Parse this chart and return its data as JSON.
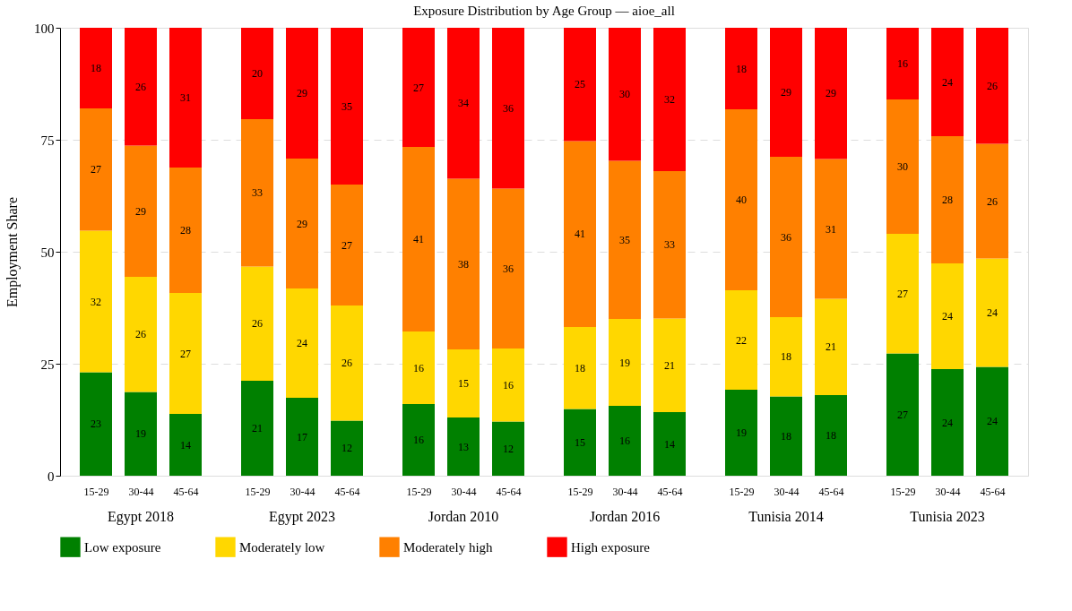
{
  "chart_data": {
    "type": "bar",
    "stacked": true,
    "title": "Exposure Distribution by Age Group — aioe_all",
    "ylabel": "Employment Share",
    "categories": [
      "15-29",
      "30-44",
      "45-64",
      "15-29",
      "30-44",
      "45-64",
      "15-29",
      "30-44",
      "45-64",
      "15-29",
      "30-44",
      "45-64",
      "15-29",
      "30-44",
      "45-64",
      "15-29",
      "30-44",
      "45-64"
    ],
    "annotations": [
      "Egypt 2018",
      "Egypt 2023",
      "Jordan 2010",
      "Jordan 2016",
      "Tunisia 2014",
      "Tunisia 2023"
    ],
    "ylim": [
      0,
      100
    ],
    "yticks": [
      0,
      25,
      50,
      75,
      100
    ],
    "grid": "y",
    "legend": "bottom",
    "series": [
      {
        "name": "Low exposure",
        "color": "#008000",
        "values": [
          23.1,
          18.7,
          13.8,
          21.2,
          17.4,
          12.3,
          16.0,
          13.0,
          12.1,
          14.9,
          15.6,
          14.2,
          19.2,
          17.7,
          18.0,
          27.3,
          23.8,
          24.3
        ],
        "value_labels": [
          "23",
          "19",
          "14",
          "21",
          "17",
          "12",
          "16",
          "13",
          "12",
          "15",
          "16",
          "14",
          "19",
          "18",
          "18",
          "27",
          "24",
          "24"
        ]
      },
      {
        "name": "Moderately low",
        "color": "#ffd700",
        "values": [
          31.6,
          25.7,
          27.0,
          25.5,
          24.4,
          25.7,
          16.2,
          15.2,
          16.3,
          18.3,
          19.4,
          20.9,
          22.2,
          17.7,
          21.5,
          26.7,
          23.6,
          24.2
        ],
        "value_labels": [
          "32",
          "26",
          "27",
          "26",
          "24",
          "26",
          "16",
          "15",
          "16",
          "18",
          "19",
          "21",
          "22",
          "18",
          "21",
          "27",
          "24",
          "24"
        ]
      },
      {
        "name": "Moderately high",
        "color": "#ff8000",
        "values": [
          27.3,
          29.3,
          28.0,
          32.9,
          29.0,
          27.0,
          41.2,
          38.1,
          35.7,
          41.5,
          35.3,
          32.9,
          40.4,
          35.8,
          31.2,
          30.0,
          28.4,
          25.6
        ],
        "value_labels": [
          "27",
          "29",
          "28",
          "33",
          "29",
          "27",
          "41",
          "38",
          "36",
          "41",
          "35",
          "33",
          "40",
          "36",
          "31",
          "30",
          "28",
          "26"
        ]
      },
      {
        "name": "High exposure",
        "color": "#ff0000",
        "values": [
          18.0,
          26.3,
          31.2,
          20.4,
          29.2,
          35.0,
          26.6,
          33.7,
          35.9,
          25.3,
          29.7,
          32.0,
          18.2,
          28.8,
          29.3,
          16.0,
          24.2,
          25.9
        ],
        "value_labels": [
          "18",
          "26",
          "31",
          "20",
          "29",
          "35",
          "27",
          "34",
          "36",
          "25",
          "30",
          "32",
          "18",
          "29",
          "29",
          "16",
          "24",
          "26"
        ]
      }
    ]
  }
}
